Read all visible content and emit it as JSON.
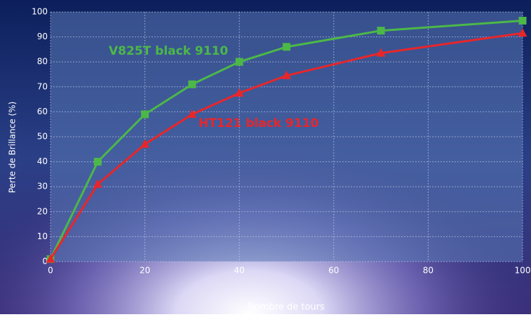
{
  "chart_data": {
    "type": "line",
    "x_label": "Nombre de tours",
    "y_label": "Perte de Brillance (%)",
    "xlim": [
      0,
      100
    ],
    "xticks": [
      0,
      20,
      40,
      60,
      80,
      100
    ],
    "ylim": [
      0,
      100
    ],
    "yticks": [
      0,
      10,
      20,
      30,
      40,
      50,
      60,
      70,
      80,
      90,
      100
    ],
    "grid": true,
    "series": [
      {
        "name": "V825T black 9110",
        "color": "#4cb848",
        "marker": "square",
        "x": [
          0,
          10,
          20,
          30,
          40,
          50,
          70,
          100
        ],
        "values": [
          1,
          40,
          59,
          71,
          80,
          86,
          92.5,
          96.5
        ]
      },
      {
        "name": "HT121 black 9110",
        "color": "#e8262a",
        "marker": "triangle",
        "x": [
          0,
          10,
          20,
          30,
          40,
          50,
          70,
          100
        ],
        "values": [
          1,
          31,
          47,
          59,
          67.5,
          74.5,
          83.5,
          91.5
        ]
      }
    ]
  }
}
